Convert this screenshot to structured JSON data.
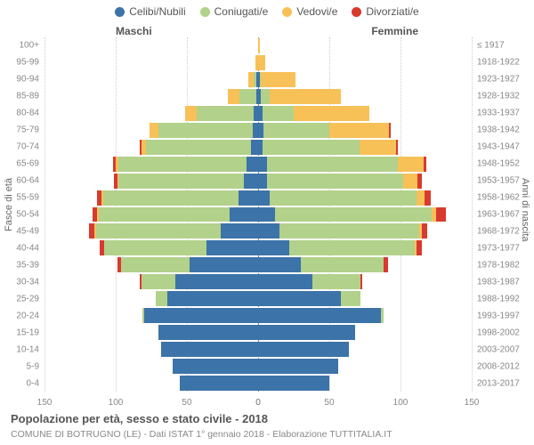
{
  "type": "population-pyramid",
  "title": "Popolazione per età, sesso e stato civile - 2018",
  "subtitle": "COMUNE DI BOTRUGNO (LE) - Dati ISTAT 1° gennaio 2018 - Elaborazione TUTTITALIA.IT",
  "legend": [
    {
      "label": "Celibi/Nubili",
      "color": "#3c73a8"
    },
    {
      "label": "Coniugati/e",
      "color": "#b2d18a"
    },
    {
      "label": "Vedovi/e",
      "color": "#f7c158"
    },
    {
      "label": "Divorziati/e",
      "color": "#d83a2f"
    }
  ],
  "side_labels": {
    "male": "Maschi",
    "female": "Femmine"
  },
  "yaxis_left_title": "Fasce di età",
  "yaxis_right_title": "Anni di nascita",
  "xaxis": {
    "max": 150,
    "ticks": [
      0,
      50,
      100,
      150
    ]
  },
  "colors": {
    "celibi": "#3c73a8",
    "coniugati": "#b2d18a",
    "vedovi": "#f7c158",
    "divorziati": "#d83a2f",
    "grid": "#cccccc",
    "center": "#888888",
    "text": "#555555",
    "text_light": "#888888",
    "background": "#ffffff"
  },
  "font_sizes": {
    "legend": 12,
    "tick": 10,
    "title": 13,
    "subtitle": 10.5
  },
  "rows": [
    {
      "age": "100+",
      "birth": "≤ 1917",
      "m": [
        0,
        0,
        0,
        0
      ],
      "f": [
        0,
        0,
        1,
        0
      ]
    },
    {
      "age": "95-99",
      "birth": "1918-1922",
      "m": [
        0,
        0,
        2,
        0
      ],
      "f": [
        0,
        0,
        5,
        0
      ]
    },
    {
      "age": "90-94",
      "birth": "1923-1927",
      "m": [
        1,
        2,
        4,
        0
      ],
      "f": [
        1,
        1,
        24,
        0
      ]
    },
    {
      "age": "85-89",
      "birth": "1928-1932",
      "m": [
        1,
        12,
        8,
        0
      ],
      "f": [
        2,
        6,
        50,
        0
      ]
    },
    {
      "age": "80-84",
      "birth": "1933-1937",
      "m": [
        3,
        40,
        8,
        0
      ],
      "f": [
        3,
        22,
        53,
        0
      ]
    },
    {
      "age": "75-79",
      "birth": "1938-1942",
      "m": [
        4,
        66,
        6,
        0
      ],
      "f": [
        4,
        46,
        42,
        1
      ]
    },
    {
      "age": "70-74",
      "birth": "1943-1947",
      "m": [
        5,
        74,
        3,
        1
      ],
      "f": [
        3,
        68,
        26,
        1
      ]
    },
    {
      "age": "65-69",
      "birth": "1948-1952",
      "m": [
        8,
        90,
        2,
        2
      ],
      "f": [
        6,
        92,
        18,
        2
      ]
    },
    {
      "age": "60-64",
      "birth": "1953-1957",
      "m": [
        10,
        88,
        1,
        2
      ],
      "f": [
        6,
        96,
        10,
        3
      ]
    },
    {
      "age": "55-59",
      "birth": "1958-1962",
      "m": [
        14,
        95,
        1,
        3
      ],
      "f": [
        8,
        103,
        6,
        4
      ]
    },
    {
      "age": "50-54",
      "birth": "1963-1967",
      "m": [
        20,
        92,
        1,
        3
      ],
      "f": [
        12,
        110,
        3,
        7
      ]
    },
    {
      "age": "45-49",
      "birth": "1968-1972",
      "m": [
        26,
        88,
        1,
        4
      ],
      "f": [
        15,
        98,
        2,
        4
      ]
    },
    {
      "age": "40-44",
      "birth": "1973-1977",
      "m": [
        36,
        72,
        0,
        3
      ],
      "f": [
        22,
        88,
        1,
        4
      ]
    },
    {
      "age": "35-39",
      "birth": "1978-1982",
      "m": [
        48,
        48,
        0,
        3
      ],
      "f": [
        30,
        58,
        0,
        3
      ]
    },
    {
      "age": "30-34",
      "birth": "1983-1987",
      "m": [
        58,
        24,
        0,
        1
      ],
      "f": [
        38,
        34,
        0,
        1
      ]
    },
    {
      "age": "25-29",
      "birth": "1988-1992",
      "m": [
        64,
        8,
        0,
        0
      ],
      "f": [
        58,
        14,
        0,
        0
      ]
    },
    {
      "age": "20-24",
      "birth": "1993-1997",
      "m": [
        80,
        1,
        0,
        0
      ],
      "f": [
        86,
        2,
        0,
        0
      ]
    },
    {
      "age": "15-19",
      "birth": "1998-2002",
      "m": [
        70,
        0,
        0,
        0
      ],
      "f": [
        68,
        0,
        0,
        0
      ]
    },
    {
      "age": "10-14",
      "birth": "2003-2007",
      "m": [
        68,
        0,
        0,
        0
      ],
      "f": [
        64,
        0,
        0,
        0
      ]
    },
    {
      "age": "5-9",
      "birth": "2008-2012",
      "m": [
        60,
        0,
        0,
        0
      ],
      "f": [
        56,
        0,
        0,
        0
      ]
    },
    {
      "age": "0-4",
      "birth": "2013-2017",
      "m": [
        55,
        0,
        0,
        0
      ],
      "f": [
        50,
        0,
        0,
        0
      ]
    }
  ]
}
